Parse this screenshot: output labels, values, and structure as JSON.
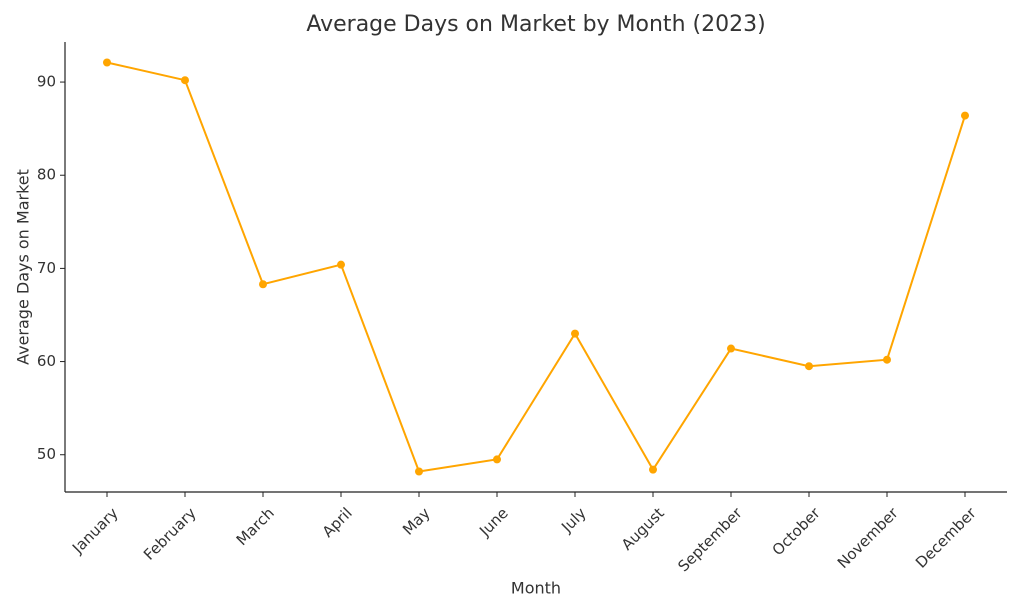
{
  "chart_data": {
    "type": "line",
    "title": "Average Days on Market by Month (2023)",
    "x_label": "Month",
    "y_label": "Average Days on Market",
    "categories": [
      "January",
      "February",
      "March",
      "April",
      "May",
      "June",
      "July",
      "August",
      "September",
      "October",
      "November",
      "December"
    ],
    "series": [
      {
        "name": "Average Days on Market",
        "color": "#ffa500",
        "values": [
          92.1,
          90.2,
          68.3,
          70.4,
          48.2,
          49.5,
          63.0,
          48.4,
          61.4,
          59.5,
          60.2,
          86.4
        ]
      }
    ],
    "ylim": [
      46.0,
      94.3
    ],
    "yticks": [
      50,
      60,
      70,
      80,
      90
    ],
    "grid": false,
    "markers": true
  }
}
